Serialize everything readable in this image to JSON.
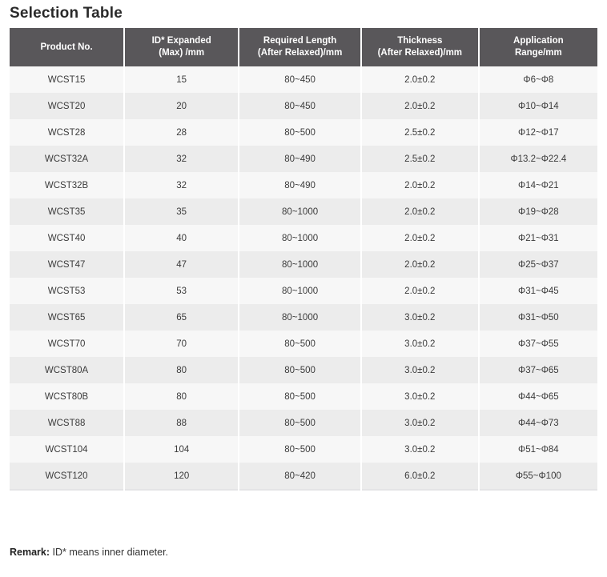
{
  "page": {
    "title": "Selection Table",
    "remark_label": "Remark:",
    "remark_text": " ID* means inner diameter."
  },
  "colors": {
    "header_bg": "#59575a",
    "header_text": "#ffffff",
    "row_light": "#f7f7f7",
    "row_dark": "#ececec",
    "body_text": "#3b3b3b"
  },
  "table": {
    "columns": [
      {
        "line1": "Product No.",
        "line2": ""
      },
      {
        "line1": "ID* Expanded",
        "line2": "(Max) /mm"
      },
      {
        "line1": "Required Length",
        "line2": "(After Relaxed)/mm"
      },
      {
        "line1": "Thickness",
        "line2": "(After Relaxed)/mm"
      },
      {
        "line1": "Application",
        "line2": "Range/mm"
      }
    ],
    "rows": [
      [
        "WCST15",
        "15",
        "80~450",
        "2.0±0.2",
        "Φ6~Φ8"
      ],
      [
        "WCST20",
        "20",
        "80~450",
        "2.0±0.2",
        "Φ10~Φ14"
      ],
      [
        "WCST28",
        "28",
        "80~500",
        "2.5±0.2",
        "Φ12~Φ17"
      ],
      [
        "WCST32A",
        "32",
        "80~490",
        "2.5±0.2",
        "Φ13.2~Φ22.4"
      ],
      [
        "WCST32B",
        "32",
        "80~490",
        "2.0±0.2",
        "Φ14~Φ21"
      ],
      [
        "WCST35",
        "35",
        "80~1000",
        "2.0±0.2",
        "Φ19~Φ28"
      ],
      [
        "WCST40",
        "40",
        "80~1000",
        "2.0±0.2",
        "Φ21~Φ31"
      ],
      [
        "WCST47",
        "47",
        "80~1000",
        "2.0±0.2",
        "Φ25~Φ37"
      ],
      [
        "WCST53",
        "53",
        "80~1000",
        "2.0±0.2",
        "Φ31~Φ45"
      ],
      [
        "WCST65",
        "65",
        "80~1000",
        "3.0±0.2",
        "Φ31~Φ50"
      ],
      [
        "WCST70",
        "70",
        "80~500",
        "3.0±0.2",
        "Φ37~Φ55"
      ],
      [
        "WCST80A",
        "80",
        "80~500",
        "3.0±0.2",
        "Φ37~Φ65"
      ],
      [
        "WCST80B",
        "80",
        "80~500",
        "3.0±0.2",
        "Φ44~Φ65"
      ],
      [
        "WCST88",
        "88",
        "80~500",
        "3.0±0.2",
        "Φ44~Φ73"
      ],
      [
        "WCST104",
        "104",
        "80~500",
        "3.0±0.2",
        "Φ51~Φ84"
      ],
      [
        "WCST120",
        "120",
        "80~420",
        "6.0±0.2",
        "Φ55~Φ100"
      ]
    ]
  }
}
